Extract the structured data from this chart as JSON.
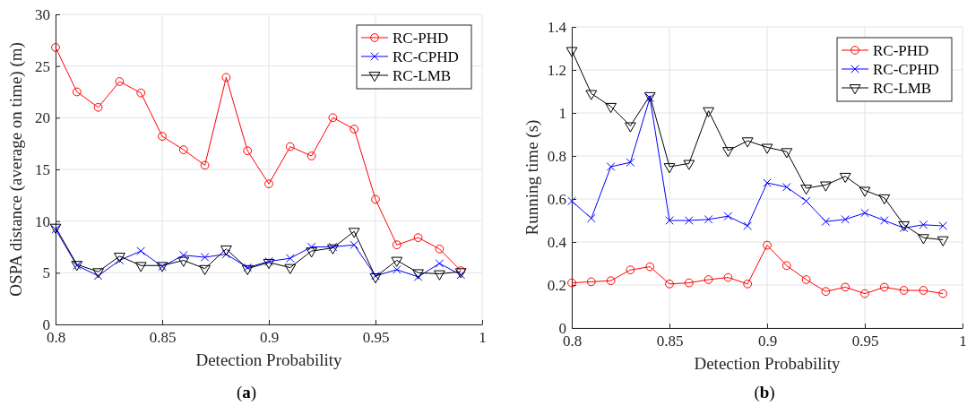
{
  "chart_data": [
    {
      "type": "line",
      "xlabel": "Detection Probability",
      "ylabel": "OSPA distance (average on time) (m)",
      "annotations": [
        "(a)"
      ],
      "x": [
        0.8,
        0.81,
        0.82,
        0.83,
        0.84,
        0.85,
        0.86,
        0.87,
        0.88,
        0.89,
        0.9,
        0.91,
        0.92,
        0.93,
        0.94,
        0.95,
        0.96,
        0.97,
        0.98,
        0.99
      ],
      "xlim": [
        0.8,
        1
      ],
      "xticks": [
        0.8,
        0.85,
        0.9,
        0.95,
        1
      ],
      "ylim": [
        0,
        30
      ],
      "yticks": [
        0,
        5,
        10,
        15,
        20,
        25,
        30
      ],
      "grid": true,
      "legend": "top right",
      "line_style": "solid",
      "series": [
        {
          "name": "RC-PHD",
          "color": "#ff0000",
          "marker": "circle",
          "values": [
            26.8,
            22.5,
            21.0,
            23.5,
            22.4,
            18.2,
            16.9,
            15.4,
            23.9,
            16.8,
            13.6,
            17.2,
            16.3,
            20.0,
            18.9,
            12.1,
            7.7,
            8.4,
            7.3,
            5.2
          ]
        },
        {
          "name": "RC-CPHD",
          "color": "#0000ff",
          "marker": "cross",
          "values": [
            9.2,
            5.7,
            4.7,
            6.2,
            7.1,
            5.6,
            6.7,
            6.5,
            6.8,
            5.5,
            6.1,
            6.4,
            7.5,
            7.5,
            7.7,
            4.7,
            5.3,
            4.6,
            5.9,
            4.8
          ]
        },
        {
          "name": "RC-LMB",
          "color": "#000000",
          "marker": "triangle",
          "values": [
            9.4,
            5.8,
            5.1,
            6.6,
            5.7,
            5.7,
            6.2,
            5.4,
            7.3,
            5.4,
            6.0,
            5.5,
            7.1,
            7.4,
            9.0,
            4.6,
            6.2,
            5.0,
            4.9,
            5.1
          ]
        }
      ]
    },
    {
      "type": "line",
      "xlabel": "Detection Probability",
      "ylabel": "Running time (s)",
      "annotations": [
        "(b)"
      ],
      "x": [
        0.8,
        0.81,
        0.82,
        0.83,
        0.84,
        0.85,
        0.86,
        0.87,
        0.88,
        0.89,
        0.9,
        0.91,
        0.92,
        0.93,
        0.94,
        0.95,
        0.96,
        0.97,
        0.98,
        0.99
      ],
      "xlim": [
        0.8,
        1
      ],
      "xticks": [
        0.8,
        0.85,
        0.9,
        0.95,
        1
      ],
      "ylim": [
        0,
        1.4
      ],
      "yticks": [
        0,
        0.2,
        0.4,
        0.6,
        0.8,
        1,
        1.2,
        1.4
      ],
      "grid": true,
      "legend": "top right",
      "line_style": "solid",
      "series": [
        {
          "name": "RC-PHD",
          "color": "#ff0000",
          "marker": "circle",
          "values": [
            0.21,
            0.215,
            0.22,
            0.27,
            0.285,
            0.205,
            0.21,
            0.225,
            0.235,
            0.205,
            0.385,
            0.29,
            0.225,
            0.17,
            0.19,
            0.16,
            0.19,
            0.175,
            0.175,
            0.16
          ]
        },
        {
          "name": "RC-CPHD",
          "color": "#0000ff",
          "marker": "cross",
          "values": [
            0.59,
            0.51,
            0.75,
            0.77,
            1.07,
            0.5,
            0.5,
            0.505,
            0.52,
            0.475,
            0.675,
            0.655,
            0.59,
            0.495,
            0.505,
            0.535,
            0.5,
            0.465,
            0.48,
            0.475
          ]
        },
        {
          "name": "RC-LMB",
          "color": "#000000",
          "marker": "triangle",
          "values": [
            1.29,
            1.09,
            1.03,
            0.94,
            1.08,
            0.75,
            0.765,
            1.01,
            0.825,
            0.87,
            0.84,
            0.82,
            0.65,
            0.665,
            0.705,
            0.64,
            0.605,
            0.48,
            0.42,
            0.41
          ]
        }
      ]
    }
  ]
}
